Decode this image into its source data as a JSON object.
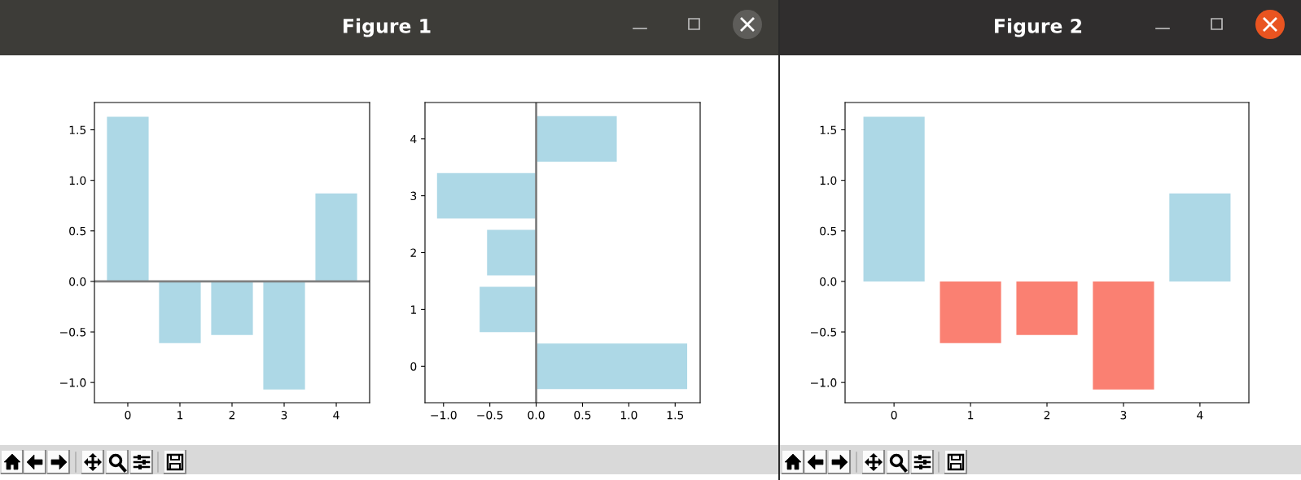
{
  "chart_data": [
    {
      "type": "bar",
      "title": "Figure 1",
      "categories": [
        "0",
        "1",
        "2",
        "3",
        "4"
      ],
      "values": [
        1.63,
        -0.61,
        -0.53,
        -1.07,
        0.87
      ],
      "color": "#add8e6",
      "ylim": [
        -1.2,
        1.77
      ],
      "yticks": [
        {
          "value": -1.0,
          "label": "−1.0"
        },
        {
          "value": -0.5,
          "label": "−0.5"
        },
        {
          "value": 0.0,
          "label": "0.0"
        },
        {
          "value": 0.5,
          "label": "0.5"
        },
        {
          "value": 1.0,
          "label": "1.0"
        },
        {
          "value": 1.5,
          "label": "1.5"
        }
      ],
      "ref_lines": [
        {
          "axis": "y",
          "value": 0,
          "color": "#808080"
        }
      ]
    },
    {
      "type": "bar",
      "orientation": "horizontal",
      "categories": [
        "4",
        "3",
        "2",
        "1",
        "0"
      ],
      "values": [
        0.87,
        -1.07,
        -0.53,
        -0.61,
        1.63
      ],
      "color": "#add8e6",
      "xlim": [
        -1.2,
        1.77
      ],
      "xticks": [
        {
          "value": -1.0,
          "label": "−1.0"
        },
        {
          "value": -0.5,
          "label": "−0.5"
        },
        {
          "value": 0.0,
          "label": "0.0"
        },
        {
          "value": 0.5,
          "label": "0.5"
        },
        {
          "value": 1.0,
          "label": "1.0"
        },
        {
          "value": 1.5,
          "label": "1.5"
        }
      ],
      "ref_lines": [
        {
          "axis": "x",
          "value": 0,
          "color": "#808080"
        }
      ]
    },
    {
      "type": "bar",
      "title": "Figure 2",
      "categories": [
        "0",
        "1",
        "2",
        "3",
        "4"
      ],
      "values": [
        1.63,
        -0.61,
        -0.53,
        -1.07,
        0.87
      ],
      "colors": [
        "#add8e6",
        "#fa8072",
        "#fa8072",
        "#fa8072",
        "#add8e6"
      ],
      "ylim": [
        -1.2,
        1.77
      ],
      "yticks": [
        {
          "value": -1.0,
          "label": "−1.0"
        },
        {
          "value": -0.5,
          "label": "−0.5"
        },
        {
          "value": 0.0,
          "label": "0.0"
        },
        {
          "value": 0.5,
          "label": "0.5"
        },
        {
          "value": 1.0,
          "label": "1.0"
        },
        {
          "value": 1.5,
          "label": "1.5"
        }
      ]
    }
  ]
}
